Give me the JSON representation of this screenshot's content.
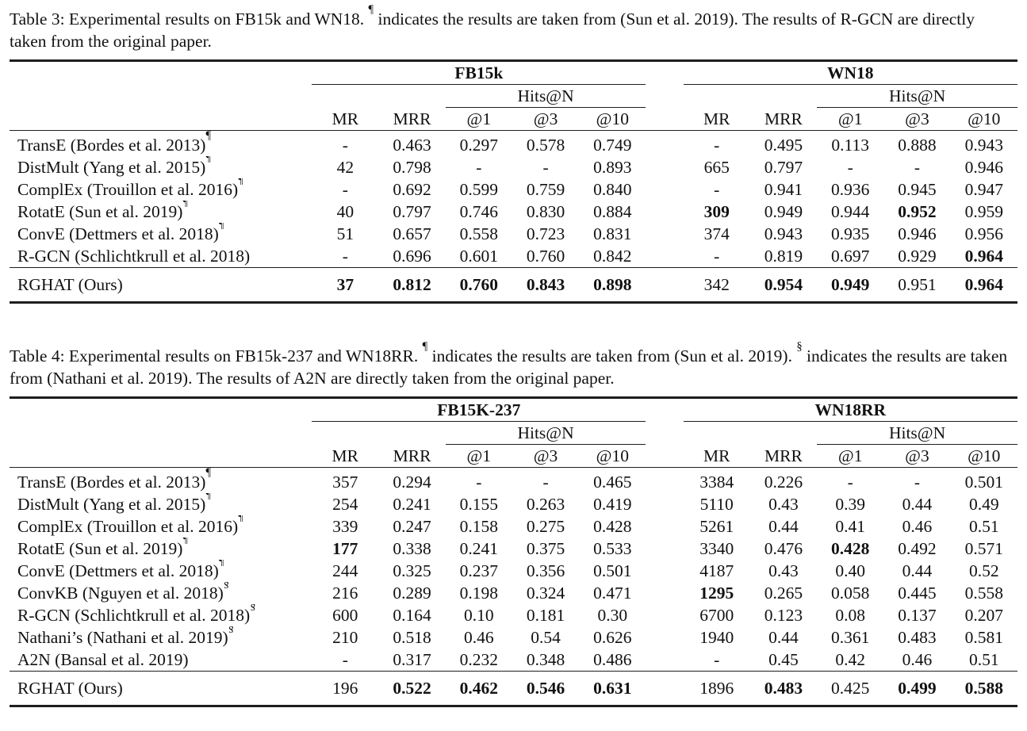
{
  "colors": {
    "background": "#ffffff",
    "text": "#111111",
    "rule": "#1e1e1e"
  },
  "table3": {
    "caption": {
      "part1": "Table 3: Experimental results on FB15k and WN18. ",
      "marker1": "¶",
      "part2": " indicates the results are taken from (Sun et al. 2019). The results of R-GCN are directly taken from the original paper."
    },
    "groups": [
      "FB15k",
      "WN18"
    ],
    "hits_label": "Hits@N",
    "columns": [
      "MR",
      "MRR",
      "@1",
      "@3",
      "@10"
    ],
    "rows": [
      {
        "label": "TransE (Bordes et al. 2013)",
        "sup": "¶",
        "values": [
          "-",
          "0.463",
          "0.297",
          "0.578",
          "0.749",
          "-",
          "0.495",
          "0.113",
          "0.888",
          "0.943"
        ],
        "bold": []
      },
      {
        "label": "DistMult (Yang et al. 2015)",
        "sup": "¶",
        "values": [
          "42",
          "0.798",
          "-",
          "-",
          "0.893",
          "665",
          "0.797",
          "-",
          "-",
          "0.946"
        ],
        "bold": []
      },
      {
        "label": "ComplEx (Trouillon et al. 2016)",
        "sup": "¶",
        "values": [
          "-",
          "0.692",
          "0.599",
          "0.759",
          "0.840",
          "-",
          "0.941",
          "0.936",
          "0.945",
          "0.947"
        ],
        "bold": []
      },
      {
        "label": "RotatE (Sun et al. 2019)",
        "sup": "¶",
        "values": [
          "40",
          "0.797",
          "0.746",
          "0.830",
          "0.884",
          "309",
          "0.949",
          "0.944",
          "0.952",
          "0.959"
        ],
        "bold": [
          5,
          8
        ]
      },
      {
        "label": "ConvE (Dettmers et al. 2018)",
        "sup": "¶",
        "values": [
          "51",
          "0.657",
          "0.558",
          "0.723",
          "0.831",
          "374",
          "0.943",
          "0.935",
          "0.946",
          "0.956"
        ],
        "bold": []
      },
      {
        "label": "R-GCN (Schlichtkrull et al. 2018)",
        "sup": "",
        "values": [
          "-",
          "0.696",
          "0.601",
          "0.760",
          "0.842",
          "-",
          "0.819",
          "0.697",
          "0.929",
          "0.964"
        ],
        "bold": [
          9
        ]
      },
      {
        "label": "RGHAT (Ours)",
        "sup": "",
        "values": [
          "37",
          "0.812",
          "0.760",
          "0.843",
          "0.898",
          "342",
          "0.954",
          "0.949",
          "0.951",
          "0.964"
        ],
        "bold": [
          0,
          1,
          2,
          3,
          4,
          6,
          7,
          9
        ],
        "final": true
      }
    ]
  },
  "table4": {
    "caption": {
      "part1": "Table 4: Experimental results on FB15k-237 and WN18RR. ",
      "marker1": "¶",
      "part2": " indicates the results are taken from (Sun et al. 2019). ",
      "marker2": "§",
      "part3": " indicates the results are taken from (Nathani et al. 2019). The results of A2N are directly taken from the original paper."
    },
    "groups": [
      "FB15K-237",
      "WN18RR"
    ],
    "hits_label": "Hits@N",
    "columns": [
      "MR",
      "MRR",
      "@1",
      "@3",
      "@10"
    ],
    "rows": [
      {
        "label": "TransE (Bordes et al. 2013)",
        "sup": "¶",
        "values": [
          "357",
          "0.294",
          "-",
          "-",
          "0.465",
          "3384",
          "0.226",
          "-",
          "-",
          "0.501"
        ],
        "bold": []
      },
      {
        "label": "DistMult (Yang et al. 2015)",
        "sup": "¶",
        "values": [
          "254",
          "0.241",
          "0.155",
          "0.263",
          "0.419",
          "5110",
          "0.43",
          "0.39",
          "0.44",
          "0.49"
        ],
        "bold": []
      },
      {
        "label": "ComplEx (Trouillon et al. 2016)",
        "sup": "¶",
        "values": [
          "339",
          "0.247",
          "0.158",
          "0.275",
          "0.428",
          "5261",
          "0.44",
          "0.41",
          "0.46",
          "0.51"
        ],
        "bold": []
      },
      {
        "label": "RotatE (Sun et al. 2019)",
        "sup": "¶",
        "values": [
          "177",
          "0.338",
          "0.241",
          "0.375",
          "0.533",
          "3340",
          "0.476",
          "0.428",
          "0.492",
          "0.571"
        ],
        "bold": [
          0,
          7
        ]
      },
      {
        "label": "ConvE (Dettmers et al. 2018)",
        "sup": "¶",
        "values": [
          "244",
          "0.325",
          "0.237",
          "0.356",
          "0.501",
          "4187",
          "0.43",
          "0.40",
          "0.44",
          "0.52"
        ],
        "bold": []
      },
      {
        "label": "ConvKB (Nguyen et al. 2018)",
        "sup": "§",
        "values": [
          "216",
          "0.289",
          "0.198",
          "0.324",
          "0.471",
          "1295",
          "0.265",
          "0.058",
          "0.445",
          "0.558"
        ],
        "bold": [
          5
        ]
      },
      {
        "label": "R-GCN (Schlichtkrull et al. 2018)",
        "sup": "§",
        "values": [
          "600",
          "0.164",
          "0.10",
          "0.181",
          "0.30",
          "6700",
          "0.123",
          "0.08",
          "0.137",
          "0.207"
        ],
        "bold": []
      },
      {
        "label": "Nathani’s (Nathani et al. 2019)",
        "sup": "§",
        "values": [
          "210",
          "0.518",
          "0.46",
          "0.54",
          "0.626",
          "1940",
          "0.44",
          "0.361",
          "0.483",
          "0.581"
        ],
        "bold": []
      },
      {
        "label": "A2N (Bansal et al. 2019)",
        "sup": "",
        "values": [
          "-",
          "0.317",
          "0.232",
          "0.348",
          "0.486",
          "-",
          "0.45",
          "0.42",
          "0.46",
          "0.51"
        ],
        "bold": []
      },
      {
        "label": "RGHAT (Ours)",
        "sup": "",
        "values": [
          "196",
          "0.522",
          "0.462",
          "0.546",
          "0.631",
          "1896",
          "0.483",
          "0.425",
          "0.499",
          "0.588"
        ],
        "bold": [
          1,
          2,
          3,
          4,
          6,
          8,
          9
        ],
        "final": true
      }
    ]
  }
}
